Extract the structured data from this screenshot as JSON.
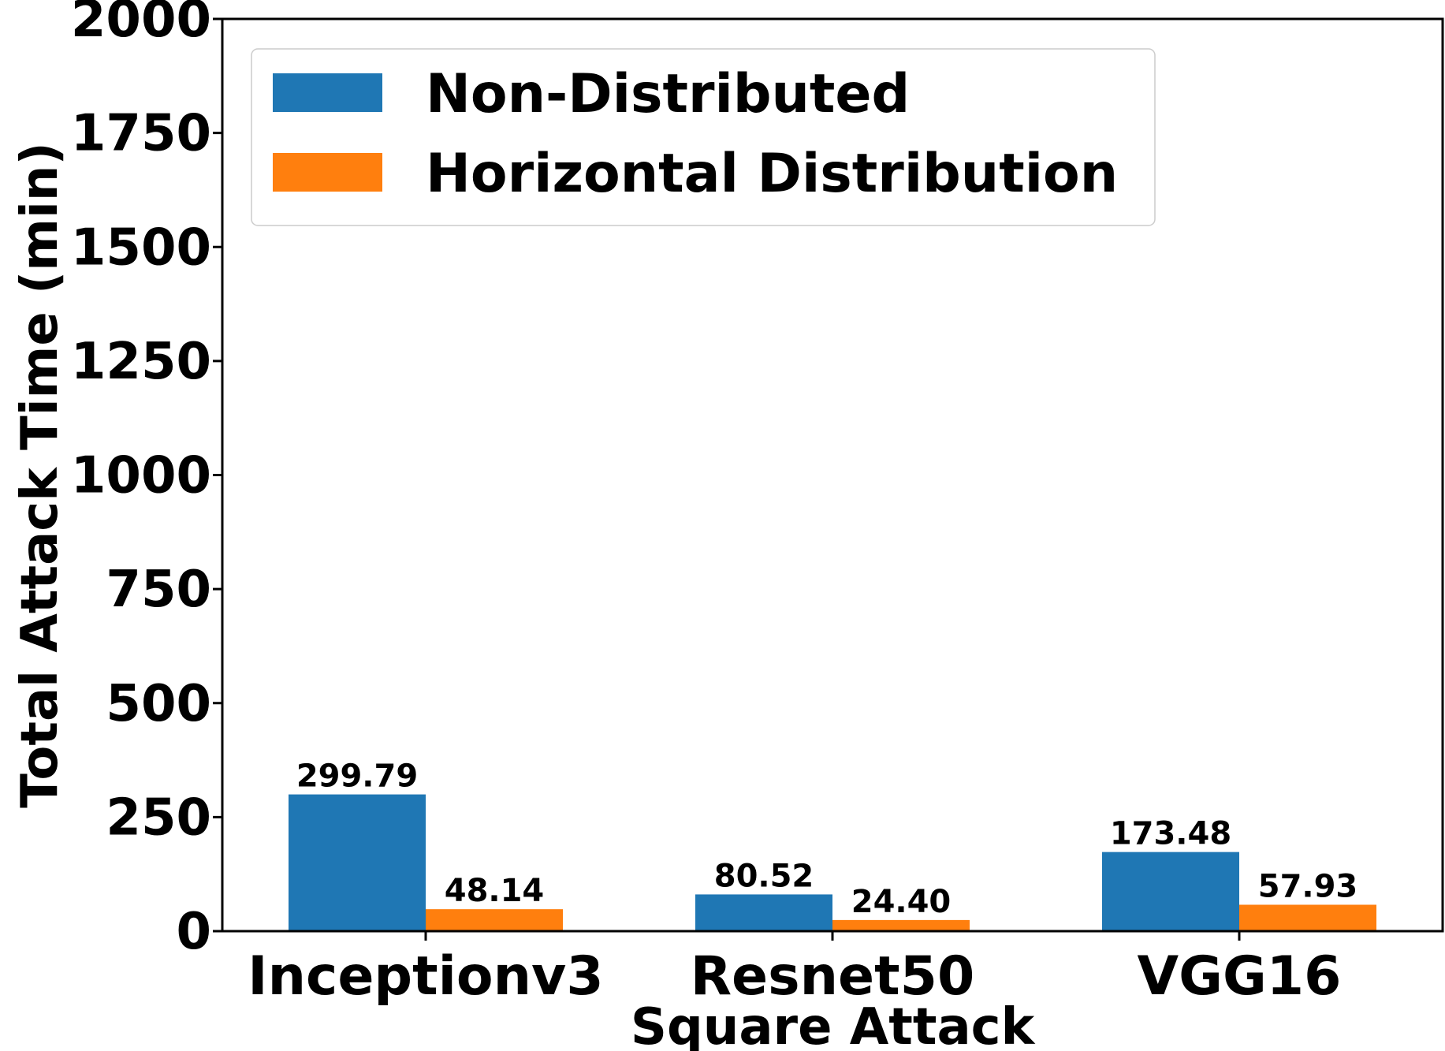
{
  "chart_data": {
    "type": "bar",
    "title": "",
    "xlabel": "Square Attack",
    "ylabel": "Total Attack Time (min)",
    "categories": [
      "Inceptionv3",
      "Resnet50",
      "VGG16"
    ],
    "ylim": [
      0,
      2000
    ],
    "yticks": [
      0,
      250,
      500,
      750,
      1000,
      1250,
      1500,
      1750,
      2000
    ],
    "grid": false,
    "legend_position": "top-left",
    "series": [
      {
        "name": "Non-Distributed",
        "color": "#1f77b4",
        "values": [
          299.79,
          80.52,
          173.48
        ],
        "labels": [
          "299.79",
          "80.52",
          "173.48"
        ]
      },
      {
        "name": "Horizontal Distribution",
        "color": "#ff7f0e",
        "values": [
          48.14,
          24.4,
          57.93
        ],
        "labels": [
          "48.14",
          "24.40",
          "57.93"
        ]
      }
    ]
  }
}
